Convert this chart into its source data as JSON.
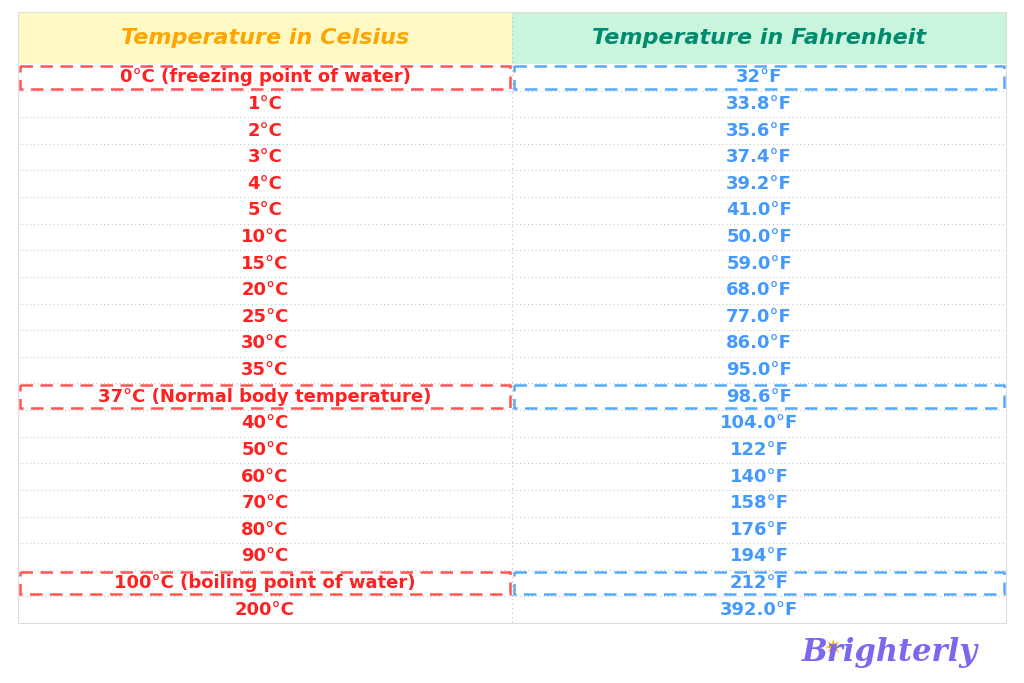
{
  "header_celsius": "Temperature in Celsius",
  "header_fahrenheit": "Temperature in Fahrenheit",
  "header_bg_left": "#FFF9C4",
  "header_bg_right": "#C8F5DC",
  "header_color_left": "#FFA500",
  "header_color_right": "#008B6E",
  "rows": [
    {
      "celsius": "0°C (freezing point of water)",
      "fahrenheit": "32°F",
      "highlight": true
    },
    {
      "celsius": "1°C",
      "fahrenheit": "33.8°F",
      "highlight": false
    },
    {
      "celsius": "2°C",
      "fahrenheit": "35.6°F",
      "highlight": false
    },
    {
      "celsius": "3°C",
      "fahrenheit": "37.4°F",
      "highlight": false
    },
    {
      "celsius": "4°C",
      "fahrenheit": "39.2°F",
      "highlight": false
    },
    {
      "celsius": "5°C",
      "fahrenheit": "41.0°F",
      "highlight": false
    },
    {
      "celsius": "10°C",
      "fahrenheit": "50.0°F",
      "highlight": false
    },
    {
      "celsius": "15°C",
      "fahrenheit": "59.0°F",
      "highlight": false
    },
    {
      "celsius": "20°C",
      "fahrenheit": "68.0°F",
      "highlight": false
    },
    {
      "celsius": "25°C",
      "fahrenheit": "77.0°F",
      "highlight": false
    },
    {
      "celsius": "30°C",
      "fahrenheit": "86.0°F",
      "highlight": false
    },
    {
      "celsius": "35°C",
      "fahrenheit": "95.0°F",
      "highlight": false
    },
    {
      "celsius": "37°C (Normal body temperature)",
      "fahrenheit": "98.6°F",
      "highlight": true
    },
    {
      "celsius": "40°C",
      "fahrenheit": "104.0°F",
      "highlight": false
    },
    {
      "celsius": "50°C",
      "fahrenheit": "122°F",
      "highlight": false
    },
    {
      "celsius": "60°C",
      "fahrenheit": "140°F",
      "highlight": false
    },
    {
      "celsius": "70°C",
      "fahrenheit": "158°F",
      "highlight": false
    },
    {
      "celsius": "80°C",
      "fahrenheit": "176°F",
      "highlight": false
    },
    {
      "celsius": "90°C",
      "fahrenheit": "194°F",
      "highlight": false
    },
    {
      "celsius": "100°C (boiling point of water)",
      "fahrenheit": "212°F",
      "highlight": true
    },
    {
      "celsius": "200°C",
      "fahrenheit": "392.0°F",
      "highlight": false
    }
  ],
  "text_color_red": "#FF2020",
  "text_color_blue": "#4499FF",
  "divider_color_dotted": "#BBBBBB",
  "highlight_border_red": "#FF5555",
  "highlight_border_blue": "#55AAFF",
  "bg_color": "#FFFFFF",
  "brighterly_color": "#7B68EE",
  "brighterly_sun_color": "#FFA500",
  "font_size_header": 16,
  "font_size_row": 13
}
